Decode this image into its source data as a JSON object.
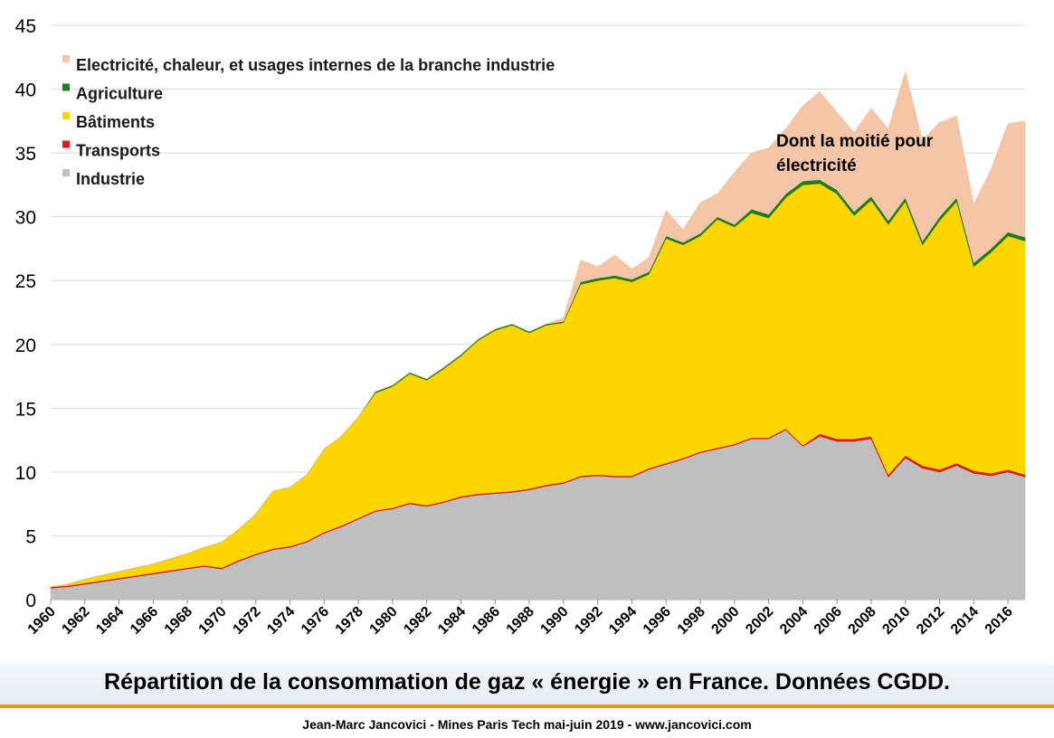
{
  "chart_data": {
    "type": "area",
    "stacked": true,
    "x": [
      1960,
      1961,
      1962,
      1963,
      1964,
      1965,
      1966,
      1967,
      1968,
      1969,
      1970,
      1971,
      1972,
      1973,
      1974,
      1975,
      1976,
      1977,
      1978,
      1979,
      1980,
      1981,
      1982,
      1983,
      1984,
      1985,
      1986,
      1987,
      1988,
      1989,
      1990,
      1991,
      1992,
      1993,
      1994,
      1995,
      1996,
      1997,
      1998,
      1999,
      2000,
      2001,
      2002,
      2003,
      2004,
      2005,
      2006,
      2007,
      2008,
      2009,
      2010,
      2011,
      2012,
      2013,
      2014,
      2015,
      2016,
      2017
    ],
    "x_tick_labels": [
      "1960",
      "1962",
      "1964",
      "1966",
      "1968",
      "1970",
      "1972",
      "1974",
      "1976",
      "1978",
      "1980",
      "1982",
      "1984",
      "1986",
      "1988",
      "1990",
      "1992",
      "1994",
      "1996",
      "1998",
      "2000",
      "2002",
      "2004",
      "2006",
      "2008",
      "2010",
      "2012",
      "2014",
      "2016"
    ],
    "y_ticks": [
      "0",
      "5",
      "10",
      "15",
      "20",
      "25",
      "30",
      "35",
      "40",
      "45"
    ],
    "ylim": [
      0,
      45
    ],
    "grid": "horizontal",
    "legend_position": "top-left",
    "series": [
      {
        "name": "Industrie",
        "color": "#bfbfbf",
        "values": [
          0.9,
          1.0,
          1.2,
          1.4,
          1.6,
          1.8,
          2.0,
          2.2,
          2.4,
          2.6,
          2.4,
          3.0,
          3.5,
          3.9,
          4.1,
          4.5,
          5.2,
          5.7,
          6.3,
          6.9,
          7.1,
          7.5,
          7.3,
          7.6,
          8.0,
          8.2,
          8.3,
          8.4,
          8.6,
          8.9,
          9.1,
          9.6,
          9.7,
          9.6,
          9.6,
          10.2,
          10.6,
          11.0,
          11.5,
          11.8,
          12.1,
          12.6,
          12.6,
          13.3,
          12.0,
          12.8,
          12.4,
          12.4,
          12.6,
          9.6,
          11.1,
          10.3,
          10.0,
          10.5,
          9.9,
          9.7,
          10.0,
          9.6
        ]
      },
      {
        "name": "Transports",
        "color": "#e01818",
        "values": [
          0.1,
          0.1,
          0.1,
          0.1,
          0.1,
          0.1,
          0.1,
          0.1,
          0.1,
          0.1,
          0.1,
          0.1,
          0.1,
          0.1,
          0.1,
          0.1,
          0.1,
          0.1,
          0.1,
          0.1,
          0.1,
          0.1,
          0.1,
          0.1,
          0.1,
          0.1,
          0.1,
          0.1,
          0.1,
          0.1,
          0.1,
          0.1,
          0.1,
          0.1,
          0.1,
          0.1,
          0.1,
          0.1,
          0.1,
          0.1,
          0.1,
          0.1,
          0.1,
          0.1,
          0.1,
          0.2,
          0.2,
          0.2,
          0.2,
          0.2,
          0.2,
          0.2,
          0.2,
          0.2,
          0.2,
          0.2,
          0.2,
          0.2
        ]
      },
      {
        "name": "Bâtiments",
        "color": "#ffd600",
        "values": [
          0.0,
          0.1,
          0.3,
          0.4,
          0.5,
          0.6,
          0.7,
          0.9,
          1.1,
          1.4,
          2.0,
          2.4,
          3.1,
          4.5,
          4.6,
          5.2,
          6.5,
          7.0,
          7.9,
          9.2,
          9.5,
          10.1,
          9.8,
          10.4,
          11.0,
          12.0,
          12.7,
          13.0,
          12.2,
          12.5,
          12.5,
          15.0,
          15.2,
          15.5,
          15.2,
          15.2,
          17.6,
          16.7,
          16.9,
          17.9,
          17.0,
          17.6,
          17.2,
          18.1,
          20.4,
          19.6,
          19.2,
          17.5,
          18.5,
          19.6,
          19.9,
          17.3,
          19.5,
          20.5,
          16.0,
          17.3,
          18.3,
          18.3
        ]
      },
      {
        "name": "Agriculture",
        "color": "#1e7b1e",
        "values": [
          0.0,
          0.0,
          0.0,
          0.0,
          0.0,
          0.0,
          0.0,
          0.0,
          0.0,
          0.0,
          0.0,
          0.0,
          0.0,
          0.0,
          0.0,
          0.0,
          0.0,
          0.0,
          0.0,
          0.1,
          0.1,
          0.1,
          0.1,
          0.1,
          0.1,
          0.1,
          0.1,
          0.1,
          0.1,
          0.1,
          0.1,
          0.2,
          0.2,
          0.2,
          0.2,
          0.2,
          0.2,
          0.2,
          0.2,
          0.2,
          0.2,
          0.3,
          0.3,
          0.3,
          0.3,
          0.3,
          0.3,
          0.3,
          0.3,
          0.3,
          0.3,
          0.3,
          0.3,
          0.3,
          0.3,
          0.3,
          0.3,
          0.3
        ]
      },
      {
        "name": "Electricité, chaleur, et usages internes de la branche industrie",
        "color": "#f5c5a8",
        "values": [
          0,
          0,
          0,
          0,
          0,
          0,
          0,
          0,
          0,
          0,
          0,
          0,
          0,
          0,
          0,
          0,
          0,
          0,
          0,
          0,
          0,
          0,
          0,
          0,
          0,
          0,
          0,
          0,
          0,
          0,
          0.3,
          1.7,
          0.9,
          1.6,
          0.8,
          1.1,
          2.0,
          1.0,
          2.4,
          1.8,
          4.1,
          4.4,
          5.2,
          5.1,
          5.9,
          6.9,
          6.1,
          6.2,
          6.9,
          7.2,
          9.9,
          7.9,
          7.4,
          6.4,
          4.6,
          6.2,
          8.5,
          9.1
        ]
      }
    ]
  },
  "annotation": {
    "line1": "Dont la moitié pour",
    "line2": "électricité"
  },
  "caption": "Répartition de la consommation de gaz « énergie » en France. Données CGDD.",
  "footer": "Jean-Marc Jancovici - Mines Paris Tech mai-juin 2019 - www.jancovici.com"
}
